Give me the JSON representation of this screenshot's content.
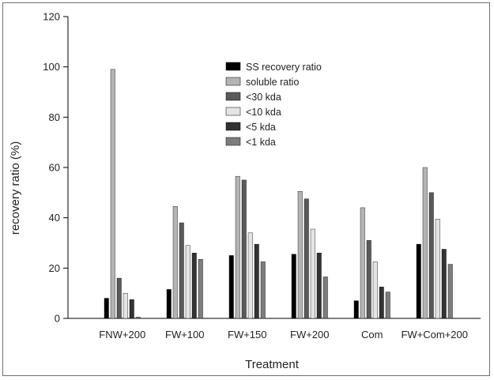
{
  "chart_data": {
    "type": "bar",
    "title": "",
    "xlabel": "Treatment",
    "ylabel": "recovery ratio (%)",
    "ylim": [
      0,
      120
    ],
    "yticks": [
      0,
      20,
      40,
      60,
      80,
      100,
      120
    ],
    "grid": false,
    "legend_position": "top-center",
    "categories": [
      "FNW+200",
      "FW+100",
      "FW+150",
      "FW+200",
      "Com",
      "FW+Com+200"
    ],
    "series": [
      {
        "name": "SS recovery ratio",
        "color": "#000000",
        "values": [
          8,
          11.5,
          25,
          25.5,
          7,
          29.5
        ]
      },
      {
        "name": "soluble ratio",
        "color": "#b4b4b4",
        "values": [
          99,
          44.5,
          56.5,
          50.5,
          44,
          60
        ]
      },
      {
        "name": "<30 kda",
        "color": "#5a5a5a",
        "values": [
          16,
          38,
          55,
          47.5,
          31,
          50
        ]
      },
      {
        "name": "<10 kda",
        "color": "#e4e4e4",
        "values": [
          10,
          29,
          34,
          35.5,
          22.5,
          39.5
        ]
      },
      {
        "name": "<5 kda",
        "color": "#333333",
        "values": [
          7.5,
          26,
          29.5,
          26,
          12.5,
          27.5
        ]
      },
      {
        "name": "<1 kda",
        "color": "#7d7d7d",
        "values": [
          0.5,
          23.5,
          22.5,
          16.5,
          10.5,
          21.5
        ]
      }
    ]
  }
}
